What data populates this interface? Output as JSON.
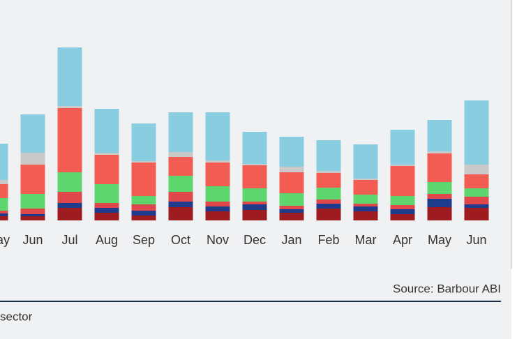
{
  "chart_data": {
    "type": "stacked_bar",
    "categories": [
      "ay",
      "Jun",
      "Jul",
      "Aug",
      "Sep",
      "Oct",
      "Nov",
      "Dec",
      "Jan",
      "Feb",
      "Mar",
      "Apr",
      "May",
      "Jun"
    ],
    "series": [
      {
        "color": "#9e1c20",
        "values": [
          6,
          6,
          18,
          11,
          7,
          19,
          13,
          15,
          11,
          17,
          13,
          9,
          19,
          18
        ]
      },
      {
        "color": "#1f3b8c",
        "values": [
          4,
          3,
          7,
          7,
          7,
          8,
          7,
          8,
          5,
          7,
          7,
          7,
          12,
          5
        ]
      },
      {
        "color": "#e0474a",
        "values": [
          4,
          8,
          16,
          7,
          9,
          14,
          7,
          4,
          5,
          6,
          4,
          6,
          7,
          11
        ]
      },
      {
        "color": "#5ed66e",
        "values": [
          18,
          21,
          28,
          27,
          12,
          23,
          22,
          19,
          18,
          17,
          13,
          13,
          17,
          12
        ]
      },
      {
        "color": "#f25c52",
        "values": [
          20,
          42,
          92,
          42,
          48,
          27,
          34,
          33,
          30,
          21,
          21,
          43,
          41,
          20
        ]
      },
      {
        "color": "#c9c9c9",
        "values": [
          6,
          17,
          3,
          3,
          2,
          7,
          3,
          2,
          8,
          3,
          2,
          2,
          3,
          14
        ]
      },
      {
        "color": "#88cde0",
        "values": [
          52,
          55,
          84,
          63,
          54,
          57,
          69,
          46,
          43,
          44,
          49,
          50,
          45,
          92
        ]
      }
    ],
    "source": "Source: Barbour ABI",
    "footer": "sector"
  }
}
